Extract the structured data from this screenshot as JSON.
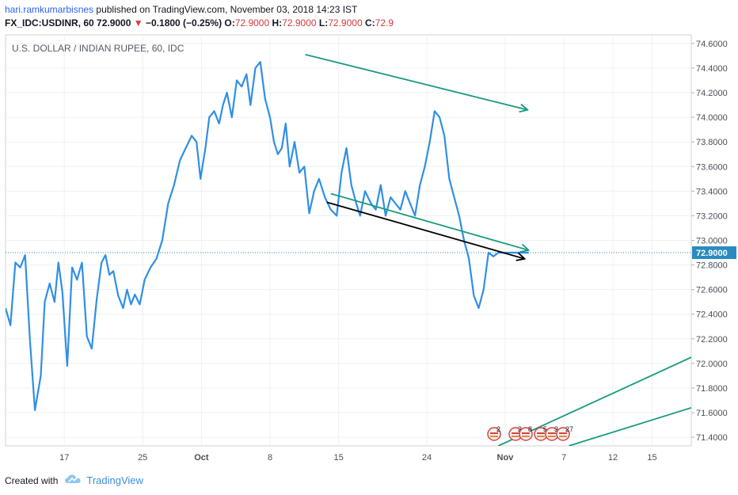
{
  "header": {
    "username": "hari.ramkumarbisnes",
    "published_text": "published on TradingView.com, November 03, 2018 14:23 IST",
    "symbol": "FX_IDC:USDINR, 60",
    "last": "72.9000",
    "change": "−0.1800 (−0.25%)",
    "o_label": "O:",
    "o_value": "72.9000",
    "h_label": "H:",
    "h_value": "72.9000",
    "l_label": "L:",
    "l_value": "72.9000",
    "c_label": "C:",
    "c_value": "72.9",
    "change_color": "#e03a3a"
  },
  "chart_data": {
    "type": "line",
    "title": "U.S. DOLLAR / INDIAN RUPEE, 60, IDC",
    "x_ticks": [
      "17",
      "25",
      "Oct",
      "8",
      "15",
      "24",
      "Nov",
      "7",
      "12",
      "15"
    ],
    "x_tick_days": [
      17,
      25,
      31,
      38,
      45,
      54,
      62,
      68,
      73,
      77
    ],
    "x_range_days": [
      11,
      81
    ],
    "y_ticks": [
      "74.6000",
      "74.4000",
      "74.2000",
      "74.0000",
      "73.8000",
      "73.6000",
      "73.4000",
      "73.2000",
      "73.0000",
      "72.8000",
      "72.6000",
      "72.4000",
      "72.2000",
      "72.0000",
      "71.8000",
      "71.6000",
      "71.4000"
    ],
    "ylim": [
      71.33,
      74.67
    ],
    "current_price": 72.9,
    "current_label": "72.9000",
    "line_color": "#2f8fe6",
    "grid": true,
    "series": [
      {
        "x": [
          11.0,
          11.5,
          12.0,
          12.5,
          13.0,
          13.5,
          14.0,
          14.6,
          15.0,
          15.5,
          16.0,
          16.4,
          16.8,
          17.3,
          17.8,
          18.3,
          18.8,
          19.3,
          19.8,
          20.3,
          20.8,
          21.2,
          21.6,
          22.0,
          22.5,
          23.0,
          23.4,
          23.8,
          24.2,
          24.7,
          25.2,
          25.8,
          26.4,
          27.0,
          27.6,
          28.2,
          28.8,
          29.4,
          30.0,
          30.5,
          30.9,
          31.4,
          31.8,
          32.3,
          32.8,
          33.2,
          33.6,
          34.1,
          34.6,
          35.1,
          35.6,
          36.0,
          36.5,
          37.0,
          37.5,
          38.0,
          38.4,
          38.8,
          39.2,
          39.6,
          40.0,
          40.5,
          41.0,
          41.5,
          42.0,
          42.5,
          43.0,
          43.6,
          44.2,
          44.8,
          45.3,
          45.8,
          46.3,
          46.8,
          47.2,
          47.7,
          48.3,
          48.8,
          49.3,
          49.8,
          50.3,
          50.8,
          51.3,
          51.8,
          52.3,
          52.8,
          53.3,
          53.8,
          54.3,
          54.8,
          55.3,
          55.8,
          56.3,
          56.8,
          57.3,
          57.8,
          58.3,
          58.8,
          59.3,
          59.8,
          60.3,
          60.8,
          61.3,
          61.8,
          62.3,
          62.8,
          63.2,
          63.6,
          64.0,
          64.4
        ],
        "values": [
          72.45,
          72.31,
          72.82,
          72.78,
          72.88,
          72.18,
          71.62,
          71.9,
          72.5,
          72.65,
          72.5,
          72.82,
          72.58,
          71.98,
          72.78,
          72.68,
          72.82,
          72.22,
          72.12,
          72.52,
          72.82,
          72.88,
          72.72,
          72.75,
          72.55,
          72.45,
          72.6,
          72.48,
          72.56,
          72.48,
          72.68,
          72.78,
          72.85,
          73.0,
          73.3,
          73.45,
          73.65,
          73.75,
          73.85,
          73.8,
          73.5,
          73.75,
          74.0,
          74.05,
          73.95,
          74.1,
          74.2,
          74.0,
          74.3,
          74.25,
          74.35,
          74.1,
          74.4,
          74.45,
          74.15,
          74.0,
          73.8,
          73.7,
          73.75,
          73.95,
          73.6,
          73.8,
          73.55,
          73.6,
          73.22,
          73.4,
          73.5,
          73.35,
          73.25,
          73.2,
          73.55,
          73.75,
          73.45,
          73.3,
          73.2,
          73.4,
          73.3,
          73.25,
          73.45,
          73.2,
          73.35,
          73.3,
          73.25,
          73.4,
          73.3,
          73.2,
          73.45,
          73.6,
          73.8,
          74.05,
          74.0,
          73.85,
          73.5,
          73.35,
          73.2,
          73.0,
          72.85,
          72.55,
          72.45,
          72.6,
          72.9,
          72.87,
          72.9,
          72.9,
          72.9,
          72.9,
          72.9,
          72.9,
          72.9,
          72.9
        ]
      }
    ],
    "trend_lines": [
      {
        "color": "#1a9a7d",
        "arrow": true,
        "x1": 41.6,
        "y1": 74.51,
        "x2": 64.3,
        "y2": 74.06
      },
      {
        "color": "#1a9a7d",
        "arrow": true,
        "x1": 44.2,
        "y1": 73.38,
        "x2": 64.4,
        "y2": 72.92
      },
      {
        "color": "#000000",
        "arrow": true,
        "x1": 43.8,
        "y1": 73.31,
        "x2": 64.0,
        "y2": 72.85
      },
      {
        "color": "#1a9a7d",
        "arrow": false,
        "x1": 61.3,
        "y1": 71.33,
        "x2": 81.0,
        "y2": 72.05
      },
      {
        "color": "#1a9a7d",
        "arrow": false,
        "x1": 68.5,
        "y1": 71.33,
        "x2": 81.0,
        "y2": 71.64
      }
    ],
    "events": [
      {
        "label": "2"
      },
      {
        "label": "2"
      },
      {
        "label": "8"
      },
      {
        "label": "5"
      },
      {
        "label": "3"
      },
      {
        "label": "27"
      }
    ]
  },
  "footer": {
    "created_with": "Created with",
    "brand": "TradingView"
  }
}
